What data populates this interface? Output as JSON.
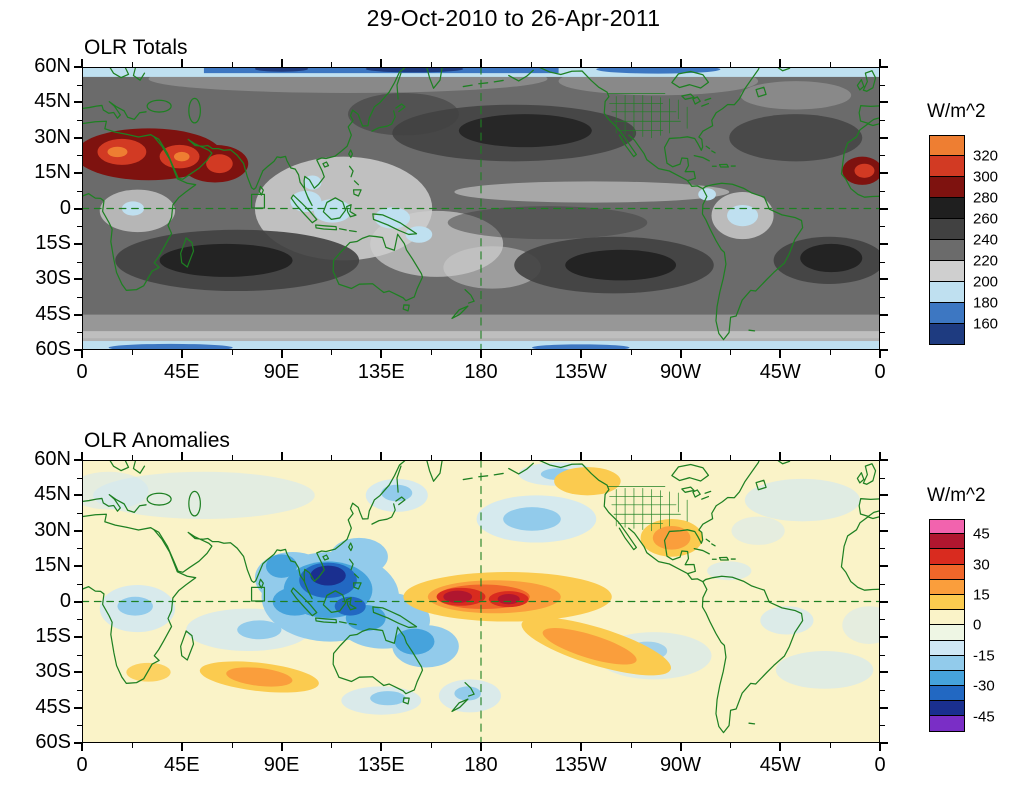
{
  "title": "29-Oct-2010 to 26-Apr-2011",
  "axes": {
    "lat_labels": [
      "60N",
      "45N",
      "30N",
      "15N",
      "0",
      "15S",
      "30S",
      "45S",
      "60S"
    ],
    "lon_labels": [
      "0",
      "45E",
      "90E",
      "135E",
      "180",
      "135W",
      "90W",
      "45W",
      "0"
    ]
  },
  "panels": [
    {
      "subtitle": "OLR Totals",
      "unit": "W/m^2",
      "colorbar": {
        "labels": [
          "320",
          "300",
          "280",
          "260",
          "240",
          "220",
          "200",
          "180",
          "160"
        ],
        "label_every": 1,
        "colors": [
          "#EE7E32",
          "#D23A23",
          "#7E120F",
          "#1F1F1F",
          "#414141",
          "#6B6B6B",
          "#CFCFCF",
          "#BFE0F0",
          "#3D77C2",
          "#1E3B80"
        ]
      }
    },
    {
      "subtitle": "OLR Anomalies",
      "unit": "W/m^2",
      "colorbar": {
        "labels": [
          "45",
          "30",
          "15",
          "0",
          "-15",
          "-30",
          "-45"
        ],
        "label_every": 2,
        "colors": [
          "#F263AE",
          "#B0162F",
          "#D92B1F",
          "#F0662A",
          "#FA9E3C",
          "#FBCB4F",
          "#FAF3C8",
          "#EEF6E4",
          "#CFE7F5",
          "#92CBEB",
          "#46A3DC",
          "#2268C2",
          "#1A2F8F",
          "#7A2EC6"
        ]
      }
    }
  ],
  "chart_data": [
    {
      "type": "heatmap",
      "title": "OLR Totals",
      "units": "W/m^2",
      "projection": "equirectangular world map, longitude 0E eastward to 0 (360), latitude 60N to 60S",
      "x_ticks": [
        "0",
        "45E",
        "90E",
        "135E",
        "180",
        "135W",
        "90W",
        "45W",
        "0"
      ],
      "y_ticks": [
        "60N",
        "45N",
        "30N",
        "15N",
        "0",
        "15S",
        "30S",
        "45S",
        "60S"
      ],
      "contour_levels": [
        160,
        180,
        200,
        220,
        240,
        260,
        280,
        300,
        320
      ],
      "colorbar_colors_top_to_bottom": [
        "#EE7E32",
        "#D23A23",
        "#7E120F",
        "#1F1F1F",
        "#414141",
        "#6B6B6B",
        "#CFCFCF",
        "#BFE0F0",
        "#3D77C2",
        "#1E3B80"
      ],
      "outline_color": "#1E8022",
      "annotations": [
        "dashed green line at equator",
        "dashed green line at 180",
        "small green square near 77E,2N"
      ],
      "features": [
        {
          "region": "North Africa / Sahara / Arabian Peninsula / NW India",
          "value": "280-320 W/m^2 (maximum, dark red)"
        },
        {
          "region": "West Africa wrap at right map edge",
          "value": "280-310 W/m^2"
        },
        {
          "region": "Maritime Continent / Indonesia",
          "value": "180-200 W/m^2 (minimum, deep convection, light blue)"
        },
        {
          "region": "Amazon basin",
          "value": "190-210 W/m^2"
        },
        {
          "region": "subtropical ocean bands (20-30 deg both hemispheres)",
          "value": "260-280 W/m^2 (darkest gray)"
        },
        {
          "region": "60N and 60S map edges",
          "value": "160-200 W/m^2 (blue strips)"
        }
      ]
    },
    {
      "type": "heatmap",
      "title": "OLR Anomalies",
      "units": "W/m^2",
      "projection": "equirectangular world map, longitude 0E eastward to 0 (360), latitude 60N to 60S",
      "x_ticks": [
        "0",
        "45E",
        "90E",
        "135E",
        "180",
        "135W",
        "90W",
        "45W",
        "0"
      ],
      "y_ticks": [
        "60N",
        "45N",
        "30N",
        "15N",
        "0",
        "15S",
        "30S",
        "45S",
        "60S"
      ],
      "contour_levels": [
        -45,
        -30,
        -15,
        0,
        15,
        30,
        45
      ],
      "colorbar_colors_top_to_bottom": [
        "#F263AE",
        "#B0162F",
        "#D92B1F",
        "#F0662A",
        "#FA9E3C",
        "#FBCB4F",
        "#FAF3C8",
        "#EEF6E4",
        "#CFE7F5",
        "#92CBEB",
        "#46A3DC",
        "#2268C2",
        "#1A2F8F",
        "#7A2EC6"
      ],
      "outline_color": "#1E8022",
      "annotations": [
        "dashed green line at equator",
        "dashed green line at 180",
        "small green square near 77E,2N"
      ],
      "features": [
        {
          "region": "equatorial central Pacific near the Date Line",
          "value": "+30 to +45 W/m^2 (suppressed convection, La Nina)"
        },
        {
          "region": "Maritime Continent / Philippines / SE Asia",
          "value": "-30 to -45 W/m^2 (enhanced convection, dark blue core)"
        },
        {
          "region": "diagonal band SE Pacific toward 30S 120W",
          "value": "+15 to +30 W/m^2"
        },
        {
          "region": "Mexico / southern United States",
          "value": "+15 to +30 W/m^2"
        },
        {
          "region": "south Indian Ocean near 30S",
          "value": "+15 to +25 W/m^2"
        },
        {
          "region": "central North Pacific, SE Pacific, south of Australia, near New Zealand",
          "value": "-10 to -25 W/m^2"
        },
        {
          "region": "most remaining areas",
          "value": "-10 to +10 W/m^2 (pale yellow background)"
        }
      ]
    }
  ]
}
